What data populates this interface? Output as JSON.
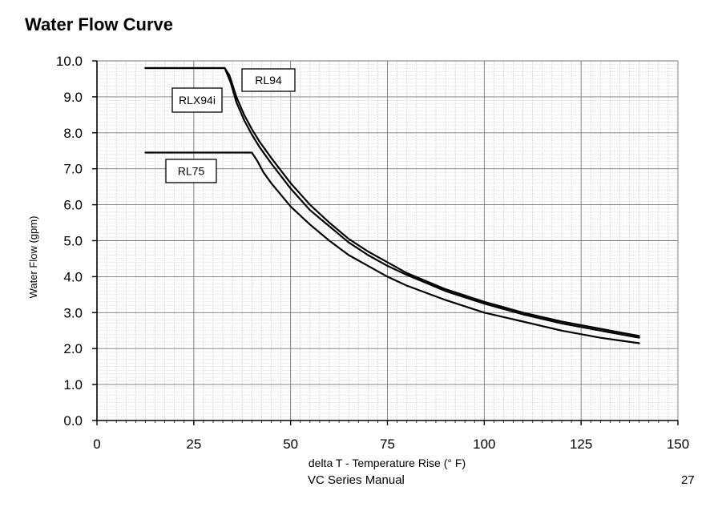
{
  "page": {
    "title": "Water Flow Curve"
  },
  "footer": {
    "manual": "VC Series Manual",
    "page_number": "27"
  },
  "chart_data": {
    "type": "line",
    "title": "Water Flow Curve",
    "xlabel": "delta T - Temperature Rise (° F)",
    "ylabel": "Water Flow (gpm)",
    "xlim": [
      0,
      150
    ],
    "ylim": [
      0,
      10
    ],
    "x_major_ticks": [
      0,
      25,
      50,
      75,
      100,
      125,
      150
    ],
    "y_major_ticks": [
      0,
      1,
      2,
      3,
      4,
      5,
      6,
      7,
      8,
      9,
      10
    ],
    "x_tick_labels": [
      "0",
      "25",
      "50",
      "75",
      "100",
      "125",
      "150"
    ],
    "y_tick_labels": [
      "0.0",
      "1.0",
      "2.0",
      "3.0",
      "4.0",
      "5.0",
      "6.0",
      "7.0",
      "8.0",
      "9.0",
      "10.0"
    ],
    "x_minor_step": 2.5,
    "y_minor_step": 0.1,
    "grid": true,
    "legend": "labels",
    "series": [
      {
        "name": "RL94",
        "x": [
          12.5,
          33,
          34.2,
          36,
          38,
          40,
          42,
          45,
          50,
          55,
          60,
          65,
          70,
          75,
          80,
          90,
          100,
          110,
          120,
          130,
          140
        ],
        "values": [
          9.8,
          9.8,
          9.6,
          9.0,
          8.5,
          8.1,
          7.75,
          7.3,
          6.6,
          6.0,
          5.5,
          5.05,
          4.7,
          4.4,
          4.1,
          3.65,
          3.3,
          3.0,
          2.75,
          2.55,
          2.35
        ]
      },
      {
        "name": "RLX94i",
        "x": [
          12.5,
          33,
          34.5,
          36,
          38,
          40,
          42,
          45,
          50,
          55,
          60,
          65,
          70,
          75,
          80,
          90,
          100,
          110,
          120,
          130,
          140
        ],
        "values": [
          9.8,
          9.8,
          9.4,
          8.85,
          8.35,
          7.95,
          7.6,
          7.15,
          6.45,
          5.85,
          5.4,
          4.95,
          4.6,
          4.3,
          4.05,
          3.6,
          3.25,
          2.95,
          2.7,
          2.5,
          2.3
        ]
      },
      {
        "name": "RL75",
        "x": [
          12.5,
          40,
          41.5,
          43,
          45,
          50,
          55,
          60,
          65,
          70,
          75,
          80,
          90,
          100,
          110,
          120,
          130,
          140
        ],
        "values": [
          7.45,
          7.45,
          7.2,
          6.9,
          6.6,
          5.95,
          5.45,
          5.0,
          4.6,
          4.3,
          4.0,
          3.75,
          3.35,
          3.0,
          2.75,
          2.5,
          2.3,
          2.15
        ]
      }
    ],
    "annotations": [
      {
        "text": "RL94",
        "series": "RL94"
      },
      {
        "text": "RLX94i",
        "series": "RLX94i"
      },
      {
        "text": "RL75",
        "series": "RL75"
      }
    ]
  }
}
